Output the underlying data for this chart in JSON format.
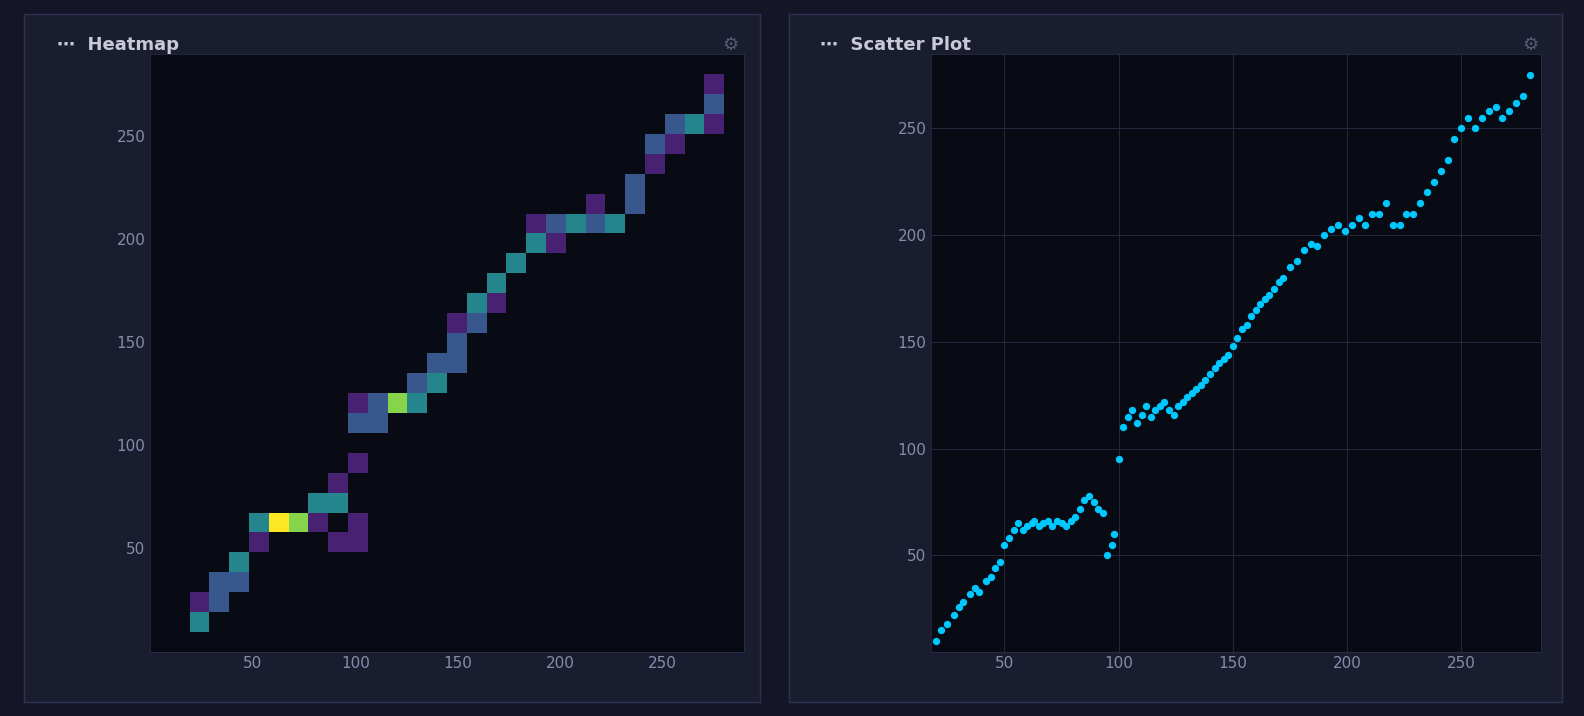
{
  "background_color": "#141627",
  "panel_bg": "#1a1d30",
  "plot_bg": "#080a14",
  "grid_color": "#252840",
  "text_color": "#c8cad8",
  "title_color": "#c8cad8",
  "heatmap_title": "Heatmap",
  "scatter_title": "Scatter Plot",
  "scatter_color": "#00c8ff",
  "scatter_dot_size": 28,
  "tick_color": "#888aaa",
  "tick_fontsize": 11,
  "title_fontsize": 13,
  "seed": 42,
  "panel_border_color": "#2e3150",
  "scatter_x": [
    20,
    22,
    25,
    28,
    30,
    32,
    35,
    37,
    39,
    42,
    44,
    46,
    48,
    50,
    52,
    54,
    56,
    58,
    60,
    62,
    63,
    65,
    67,
    69,
    71,
    73,
    75,
    77,
    79,
    81,
    83,
    85,
    87,
    89,
    91,
    93,
    95,
    97,
    98,
    100,
    102,
    104,
    106,
    108,
    110,
    112,
    114,
    116,
    118,
    120,
    122,
    124,
    126,
    128,
    130,
    132,
    134,
    136,
    138,
    140,
    142,
    144,
    146,
    148,
    150,
    152,
    154,
    156,
    158,
    160,
    162,
    164,
    166,
    168,
    170,
    172,
    175,
    178,
    181,
    184,
    187,
    190,
    193,
    196,
    199,
    202,
    205,
    208,
    211,
    214,
    217,
    220,
    223,
    226,
    229,
    232,
    235,
    238,
    241,
    244,
    247,
    250,
    253,
    256,
    259,
    262,
    265,
    268,
    271,
    274,
    277,
    280
  ],
  "scatter_y": [
    10,
    15,
    18,
    22,
    26,
    28,
    32,
    35,
    33,
    38,
    40,
    44,
    47,
    55,
    58,
    62,
    65,
    62,
    64,
    65,
    66,
    64,
    65,
    66,
    64,
    66,
    65,
    64,
    66,
    68,
    72,
    76,
    78,
    75,
    72,
    70,
    50,
    55,
    60,
    95,
    110,
    115,
    118,
    112,
    116,
    120,
    115,
    118,
    120,
    122,
    118,
    116,
    120,
    122,
    124,
    126,
    128,
    130,
    132,
    135,
    138,
    140,
    142,
    144,
    148,
    152,
    156,
    158,
    162,
    165,
    168,
    170,
    172,
    175,
    178,
    180,
    185,
    188,
    193,
    196,
    195,
    200,
    203,
    205,
    202,
    205,
    208,
    205,
    210,
    210,
    215,
    205,
    205,
    210,
    210,
    215,
    220,
    225,
    230,
    235,
    245,
    250,
    255,
    250,
    255,
    258,
    260,
    255,
    258,
    262,
    265,
    275
  ]
}
